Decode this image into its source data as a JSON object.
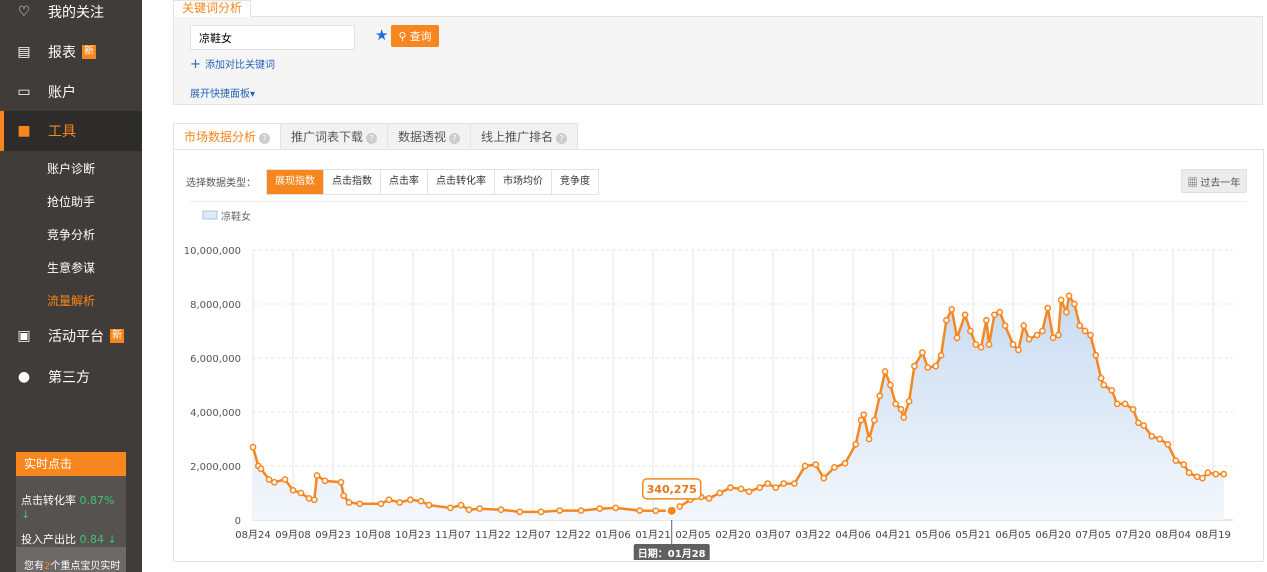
{
  "sidebar": {
    "items": [
      {
        "label": "我的关注",
        "icon": "heart-icon"
      },
      {
        "label": "报表",
        "icon": "report-icon",
        "badge": "新"
      },
      {
        "label": "账户",
        "icon": "account-card-icon"
      },
      {
        "label": "工具",
        "icon": "toolbox-icon",
        "active": true
      },
      {
        "label": "活动平台",
        "icon": "gift-icon",
        "badge": "新"
      },
      {
        "label": "第三方",
        "icon": "puzzle-icon"
      }
    ],
    "sub_items": [
      "账户诊断",
      "抢位助手",
      "竞争分析",
      "生意参谋",
      "流量解析"
    ],
    "active_sub": "流量解析",
    "realtime": {
      "title": "实时点击",
      "rows": [
        {
          "label": "点击转化率",
          "value": "0.87%",
          "trend": "↓"
        },
        {
          "label": "投入产出比",
          "value": "0.84",
          "trend": "↓"
        }
      ],
      "footer_pre": "您有",
      "footer_num": "2",
      "footer_post": "个重点宝贝实时"
    }
  },
  "keyword": {
    "tab": "关键词分析",
    "input_value": "凉鞋女",
    "query_label": "查询",
    "add_compare": "添加对比关键词",
    "expand_panel": "展开快捷面板"
  },
  "tabs": [
    "市场数据分析",
    "推广词表下载",
    "数据透视",
    "线上推广排名"
  ],
  "data_type_label": "选择数据类型：",
  "data_types": [
    "展现指数",
    "点击指数",
    "点击率",
    "点击转化率",
    "市场均价",
    "竞争度"
  ],
  "range_label": "过去一年",
  "colors": {
    "accent": "#f7861e",
    "sidebar": "#3f3c39",
    "link": "#2563b8",
    "up_down_green": "#3fc27a"
  },
  "chart_data": {
    "type": "area",
    "legend": [
      "凉鞋女"
    ],
    "legend_placement": "top-left",
    "ylim": [
      0,
      10000000
    ],
    "yticks": [
      "0",
      "2,000,000",
      "4,000,000",
      "6,000,000",
      "8,000,000",
      "10,000,000"
    ],
    "xticks": [
      "08月24",
      "09月08",
      "09月23",
      "10月08",
      "10月23",
      "11月07",
      "11月22",
      "12月07",
      "12月22",
      "01月06",
      "01月21",
      "02月05",
      "02月20",
      "03月07",
      "03月22",
      "04月06",
      "04月21",
      "05月06",
      "05月21",
      "06月05",
      "06月20",
      "07月05",
      "07月20",
      "08月04",
      "08月19"
    ],
    "tooltip": {
      "date": "01-28",
      "value_label": "340,275",
      "date_label": "日期：01月28"
    },
    "series": [
      {
        "name": "凉鞋女",
        "points": [
          [
            "08-24",
            2700000
          ],
          [
            "08-26",
            2000000
          ],
          [
            "08-27",
            1900000
          ],
          [
            "08-30",
            1500000
          ],
          [
            "09-01",
            1400000
          ],
          [
            "09-05",
            1500000
          ],
          [
            "09-08",
            1100000
          ],
          [
            "09-11",
            1000000
          ],
          [
            "09-14",
            800000
          ],
          [
            "09-16",
            750000
          ],
          [
            "09-17",
            1650000
          ],
          [
            "09-20",
            1450000
          ],
          [
            "09-26",
            1400000
          ],
          [
            "09-27",
            900000
          ],
          [
            "09-29",
            650000
          ],
          [
            "10-03",
            600000
          ],
          [
            "10-11",
            600000
          ],
          [
            "10-14",
            750000
          ],
          [
            "10-18",
            650000
          ],
          [
            "10-22",
            750000
          ],
          [
            "10-26",
            700000
          ],
          [
            "10-29",
            550000
          ],
          [
            "11-06",
            450000
          ],
          [
            "11-10",
            550000
          ],
          [
            "11-13",
            380000
          ],
          [
            "11-17",
            420000
          ],
          [
            "11-25",
            380000
          ],
          [
            "12-02",
            300000
          ],
          [
            "12-10",
            300000
          ],
          [
            "12-17",
            350000
          ],
          [
            "12-25",
            350000
          ],
          [
            "01-01",
            420000
          ],
          [
            "01-07",
            450000
          ],
          [
            "01-16",
            350000
          ],
          [
            "01-22",
            340000
          ],
          [
            "01-28",
            340275
          ],
          [
            "01-31",
            500000
          ],
          [
            "02-04",
            750000
          ],
          [
            "02-08",
            850000
          ],
          [
            "02-11",
            800000
          ],
          [
            "02-15",
            1000000
          ],
          [
            "02-19",
            1200000
          ],
          [
            "02-23",
            1150000
          ],
          [
            "02-26",
            1050000
          ],
          [
            "03-02",
            1200000
          ],
          [
            "03-05",
            1350000
          ],
          [
            "03-08",
            1200000
          ],
          [
            "03-11",
            1350000
          ],
          [
            "03-15",
            1350000
          ],
          [
            "03-19",
            2000000
          ],
          [
            "03-23",
            2050000
          ],
          [
            "03-26",
            1550000
          ],
          [
            "03-30",
            1950000
          ],
          [
            "04-03",
            2100000
          ],
          [
            "04-07",
            2800000
          ],
          [
            "04-09",
            3700000
          ],
          [
            "04-10",
            3900000
          ],
          [
            "04-12",
            3000000
          ],
          [
            "04-14",
            3700000
          ],
          [
            "04-16",
            4600000
          ],
          [
            "04-18",
            5500000
          ],
          [
            "04-20",
            5000000
          ],
          [
            "04-22",
            4300000
          ],
          [
            "04-24",
            4100000
          ],
          [
            "04-25",
            3800000
          ],
          [
            "04-27",
            4400000
          ],
          [
            "04-29",
            5700000
          ],
          [
            "05-02",
            6200000
          ],
          [
            "05-04",
            5650000
          ],
          [
            "05-07",
            5700000
          ],
          [
            "05-09",
            6100000
          ],
          [
            "05-11",
            7400000
          ],
          [
            "05-13",
            7800000
          ],
          [
            "05-15",
            6750000
          ],
          [
            "05-18",
            7600000
          ],
          [
            "05-20",
            7000000
          ],
          [
            "05-22",
            6500000
          ],
          [
            "05-24",
            6400000
          ],
          [
            "05-26",
            7400000
          ],
          [
            "05-27",
            6500000
          ],
          [
            "05-29",
            7600000
          ],
          [
            "05-31",
            7700000
          ],
          [
            "06-02",
            7200000
          ],
          [
            "06-05",
            6500000
          ],
          [
            "06-07",
            6300000
          ],
          [
            "06-09",
            7200000
          ],
          [
            "06-11",
            6700000
          ],
          [
            "06-14",
            6850000
          ],
          [
            "06-16",
            7000000
          ],
          [
            "06-18",
            7850000
          ],
          [
            "06-20",
            6750000
          ],
          [
            "06-22",
            6850000
          ],
          [
            "06-23",
            8150000
          ],
          [
            "06-25",
            7700000
          ],
          [
            "06-26",
            8300000
          ],
          [
            "06-28",
            8000000
          ],
          [
            "06-30",
            7200000
          ],
          [
            "07-02",
            7000000
          ],
          [
            "07-04",
            6850000
          ],
          [
            "07-06",
            6100000
          ],
          [
            "07-08",
            5250000
          ],
          [
            "07-09",
            5000000
          ],
          [
            "07-12",
            4800000
          ],
          [
            "07-14",
            4300000
          ],
          [
            "07-17",
            4300000
          ],
          [
            "07-20",
            4100000
          ],
          [
            "07-22",
            3600000
          ],
          [
            "07-24",
            3500000
          ],
          [
            "07-27",
            3100000
          ],
          [
            "07-30",
            3000000
          ],
          [
            "08-02",
            2800000
          ],
          [
            "08-05",
            2200000
          ],
          [
            "08-08",
            2050000
          ],
          [
            "08-10",
            1750000
          ],
          [
            "08-13",
            1600000
          ],
          [
            "08-15",
            1550000
          ],
          [
            "08-17",
            1750000
          ],
          [
            "08-20",
            1700000
          ],
          [
            "08-23",
            1700000
          ]
        ]
      }
    ]
  }
}
